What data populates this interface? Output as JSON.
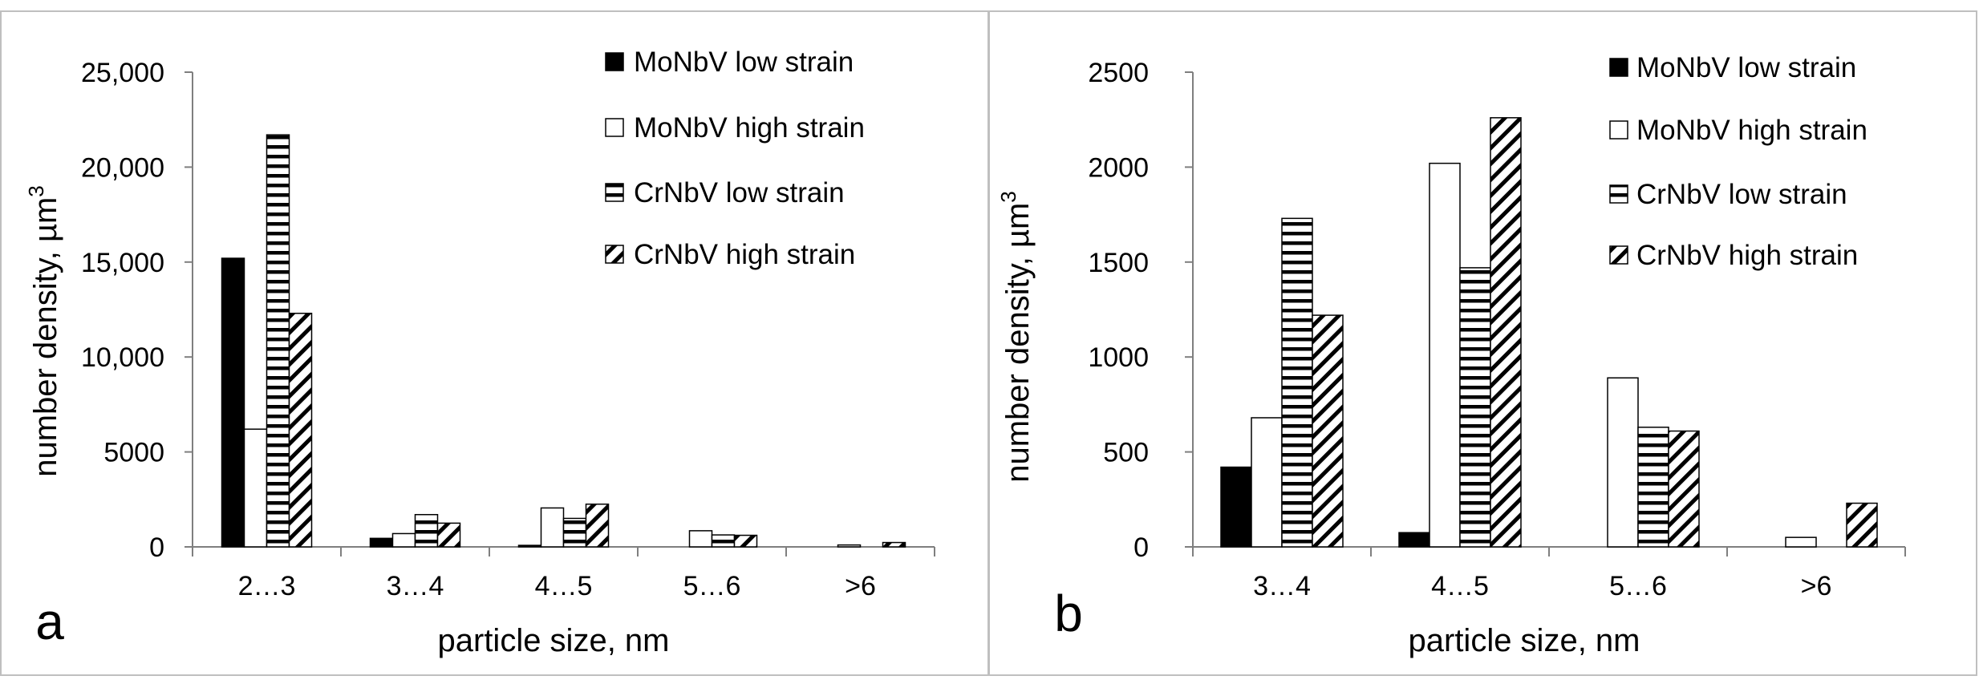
{
  "colors": {
    "mo_low": "#000000",
    "mo_high": "#ffffff",
    "cr_low": "horizontal-stripes",
    "cr_high": "diagonal-stripes",
    "axis": "#7f7f7f",
    "panel_border": "#bfbfbf"
  },
  "chart_data": [
    {
      "type": "bar",
      "panel_label": "a",
      "title": "",
      "xlabel": "particle size, nm",
      "ylabel": "number density, µm",
      "ylabel_superscript": "3",
      "ylim": [
        0,
        25000
      ],
      "yticks": [
        0,
        5000,
        10000,
        15000,
        20000,
        25000
      ],
      "ytick_labels": [
        "0",
        "5000",
        "10,000",
        "15,000",
        "20,000",
        "25,000"
      ],
      "categories": [
        "2…3",
        "3…4",
        "4…5",
        "5…6",
        ">6"
      ],
      "series": [
        {
          "name": "MoNbV low strain",
          "values": [
            15200,
            450,
            80,
            0,
            0
          ]
        },
        {
          "name": "MoNbV high strain",
          "values": [
            6200,
            700,
            2050,
            850,
            100
          ]
        },
        {
          "name": "CrNbV low strain",
          "values": [
            21700,
            1700,
            1500,
            630,
            0
          ]
        },
        {
          "name": "CrNbV high strain",
          "values": [
            12300,
            1250,
            2250,
            610,
            230
          ]
        }
      ],
      "legend_position": "top-right"
    },
    {
      "type": "bar",
      "panel_label": "b",
      "title": "",
      "xlabel": "particle size, nm",
      "ylabel": "number density, µm",
      "ylabel_superscript": "3",
      "ylim": [
        0,
        2500
      ],
      "yticks": [
        0,
        500,
        1000,
        1500,
        2000,
        2500
      ],
      "ytick_labels": [
        "0",
        "500",
        "1000",
        "1500",
        "2000",
        "2500"
      ],
      "categories": [
        "3…4",
        "4…5",
        "5…6",
        ">6"
      ],
      "series": [
        {
          "name": "MoNbV low strain",
          "values": [
            420,
            75,
            0,
            0
          ]
        },
        {
          "name": "MoNbV high strain",
          "values": [
            680,
            2020,
            890,
            50
          ]
        },
        {
          "name": "CrNbV low strain",
          "values": [
            1730,
            1470,
            630,
            0
          ]
        },
        {
          "name": "CrNbV high strain",
          "values": [
            1220,
            2260,
            610,
            230
          ]
        }
      ],
      "legend_position": "top-right"
    }
  ]
}
